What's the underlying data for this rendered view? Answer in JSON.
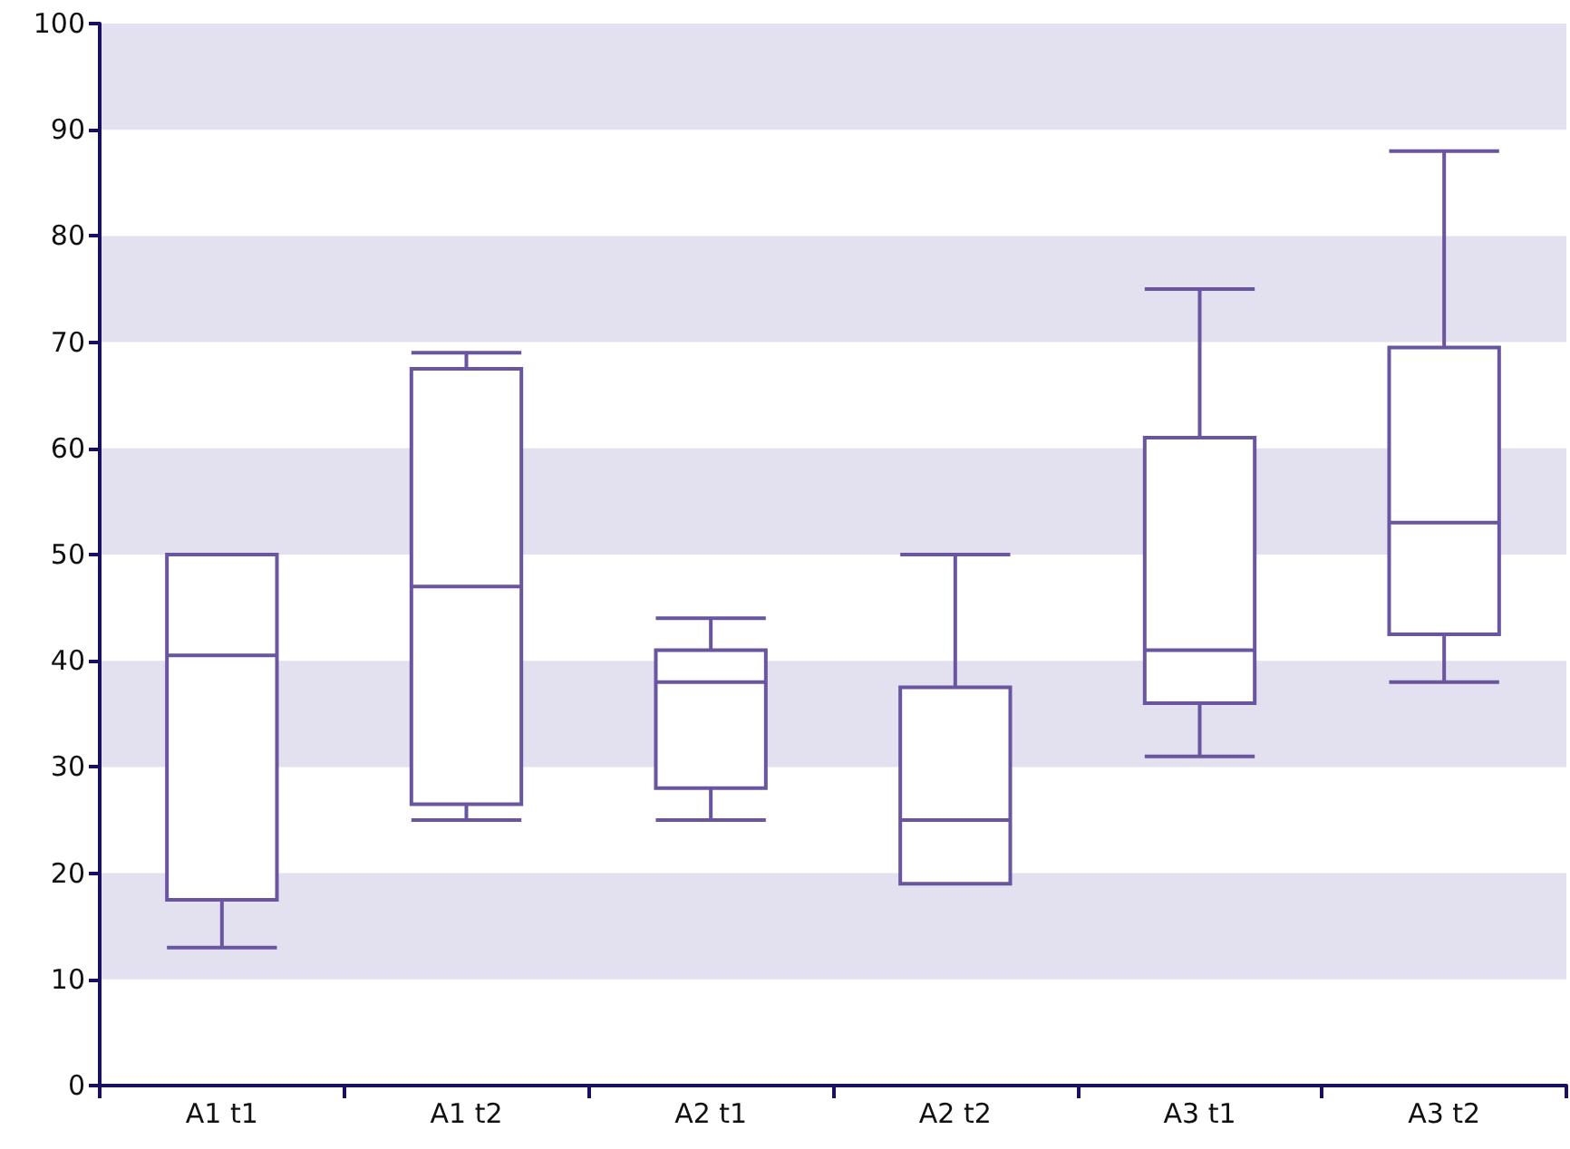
{
  "chart_data": {
    "type": "box",
    "categories": [
      "A1 t1",
      "A1 t2",
      "A2 t1",
      "A2 t2",
      "A3 t1",
      "A3 t2"
    ],
    "series": [
      {
        "color": "#6a55a0",
        "boxes": [
          {
            "low": 13,
            "q1": 17.5,
            "median": 40.5,
            "q3": 50,
            "high": 50
          },
          {
            "low": 25,
            "q1": 26.5,
            "median": 47,
            "q3": 67.5,
            "high": 69
          },
          {
            "low": 25,
            "q1": 28,
            "median": 38,
            "q3": 41,
            "high": 44
          },
          {
            "low": 19,
            "q1": 19,
            "median": 25,
            "q3": 37.5,
            "high": 50
          },
          {
            "low": 31,
            "q1": 36,
            "median": 41,
            "q3": 61,
            "high": 75
          },
          {
            "low": 38,
            "q1": 42.5,
            "median": 53,
            "q3": 69.5,
            "high": 88
          }
        ]
      }
    ],
    "ylim": [
      0,
      100
    ],
    "yticks": [
      0,
      10,
      20,
      30,
      40,
      50,
      60,
      70,
      80,
      90,
      100
    ],
    "bands": [
      {
        "axis": "y",
        "from": 10,
        "to": 20,
        "color": "#e3e1ef"
      },
      {
        "axis": "y",
        "from": 30,
        "to": 40,
        "color": "#e3e1ef"
      },
      {
        "axis": "y",
        "from": 50,
        "to": 60,
        "color": "#e3e1ef"
      },
      {
        "axis": "y",
        "from": 70,
        "to": 80,
        "color": "#e3e1ef"
      },
      {
        "axis": "y",
        "from": 90,
        "to": 100,
        "color": "#e3e1ef"
      }
    ]
  }
}
